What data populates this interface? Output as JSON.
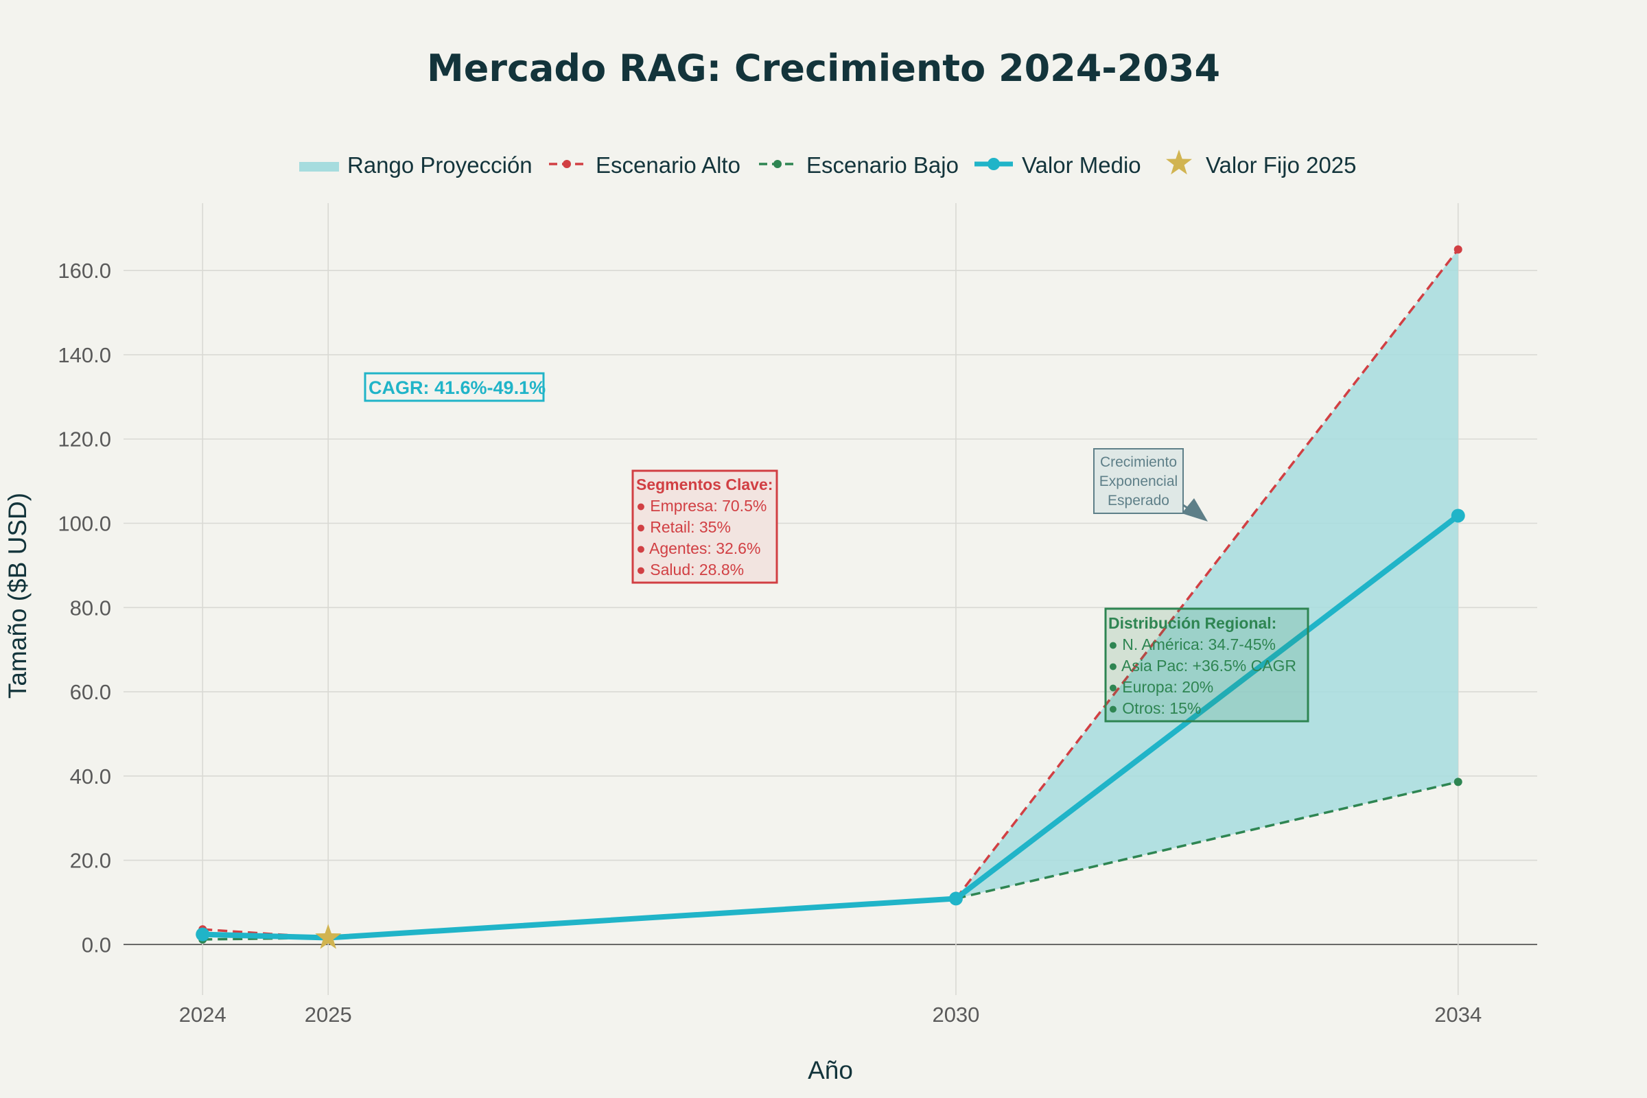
{
  "chart_data": {
    "type": "line",
    "title": "Mercado RAG: Crecimiento 2024-2034",
    "xlabel": "Año",
    "ylabel": "Tamaño ($B USD)",
    "x": [
      2024,
      2025,
      2030,
      2034
    ],
    "xticks": [
      2024,
      2025,
      2030,
      2034
    ],
    "xlim": [
      2023.37,
      2034.63
    ],
    "ylim": [
      -12.0,
      176.0
    ],
    "yticks": [
      0,
      20,
      40,
      60,
      80,
      100,
      120,
      140,
      160
    ],
    "ytick_labels": [
      "0.0",
      "20.0",
      "40.0",
      "60.0",
      "80.0",
      "100.0",
      "120.0",
      "140.0",
      "160.0"
    ],
    "grid": true,
    "legend_position": "top",
    "colors": {
      "band": "#a6dcde",
      "high": "#d13f43",
      "low": "#2e8552",
      "mid": "#20b4c8",
      "star": "#d1b451",
      "cagr": "#20b4c8",
      "arrow": "#5e7f88"
    },
    "band": {
      "name": "Rango Proyección",
      "x": [
        2030,
        2034
      ],
      "upper": [
        10.9,
        165
      ],
      "lower": [
        10.9,
        38.6
      ]
    },
    "series": [
      {
        "name": "Escenario Alto",
        "key": "high",
        "x": [
          2024,
          2025,
          2030,
          2034
        ],
        "values": [
          3.6,
          1.6,
          10.9,
          165.0
        ]
      },
      {
        "name": "Escenario Bajo",
        "key": "low",
        "x": [
          2024,
          2025,
          2030,
          2034
        ],
        "values": [
          1.2,
          1.6,
          10.9,
          38.6
        ]
      },
      {
        "name": "Valor Medio",
        "key": "mid",
        "x": [
          2024,
          2025,
          2030,
          2034
        ],
        "values": [
          2.4,
          1.6,
          10.9,
          101.8
        ]
      }
    ],
    "marker": {
      "name": "Valor Fijo 2025",
      "x": 2025,
      "value": 1.6
    },
    "annotations": {
      "cagr": "CAGR: 41.6%-49.1%",
      "segments": {
        "title": "Segmentos Clave:",
        "items": [
          "● Empresa: 70.5%",
          "● Retail: 35%",
          "● Agentes: 32.6%",
          "● Salud: 28.8%"
        ]
      },
      "growth": [
        "Crecimiento",
        "Exponencial",
        "Esperado"
      ],
      "regional": {
        "title": "Distribución Regional:",
        "items": [
          "● N. América: 34.7-45%",
          "● Asia Pac: +36.5% CAGR",
          "● Europa: 20%",
          "● Otros: 15%"
        ]
      }
    }
  }
}
